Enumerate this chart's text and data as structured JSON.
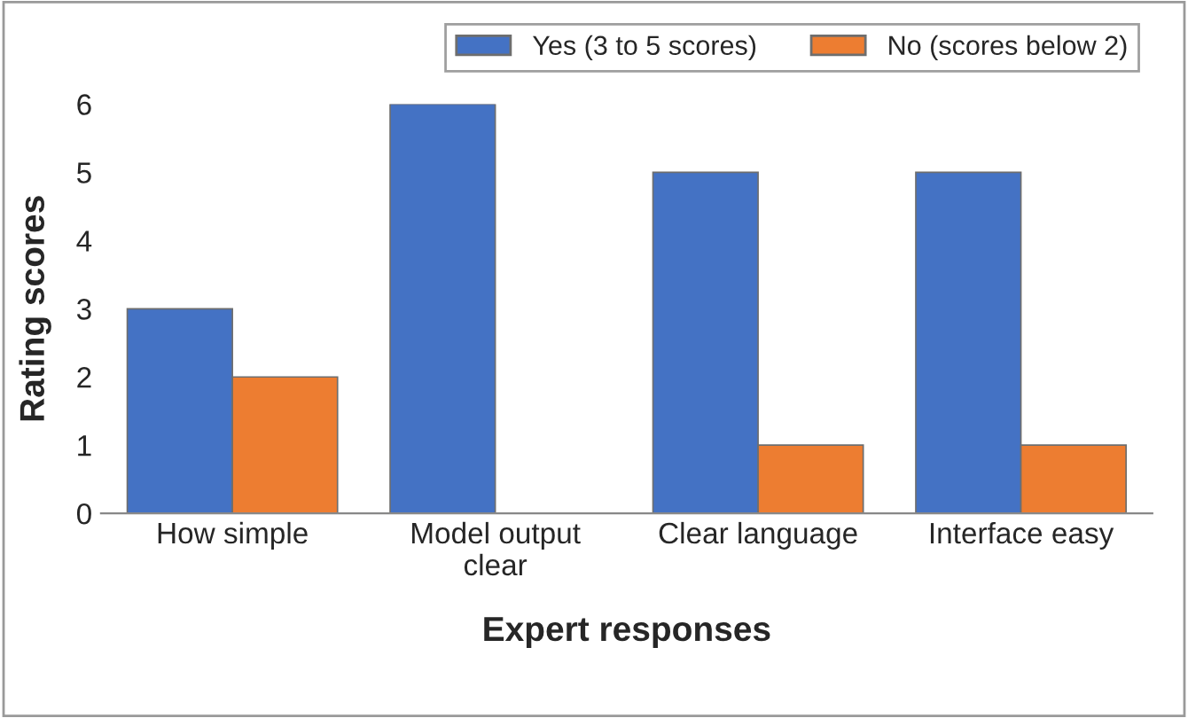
{
  "chart_data": {
    "type": "bar",
    "xlabel": "Expert responses",
    "ylabel": "Rating scores",
    "categories": [
      "How simple",
      "Model output\nclear",
      "Clear language",
      "Interface easy"
    ],
    "series": [
      {
        "name": "Yes (3 to 5 scores)",
        "color": "#4472c4",
        "values": [
          3,
          6,
          5,
          5
        ]
      },
      {
        "name": "No (scores below 2)",
        "color": "#ed7d31",
        "values": [
          2,
          null,
          1,
          1
        ]
      }
    ],
    "ylim": [
      0,
      6
    ],
    "yticks": [
      0,
      1,
      2,
      3,
      4,
      5,
      6
    ],
    "grid": false,
    "legend": "top right"
  }
}
